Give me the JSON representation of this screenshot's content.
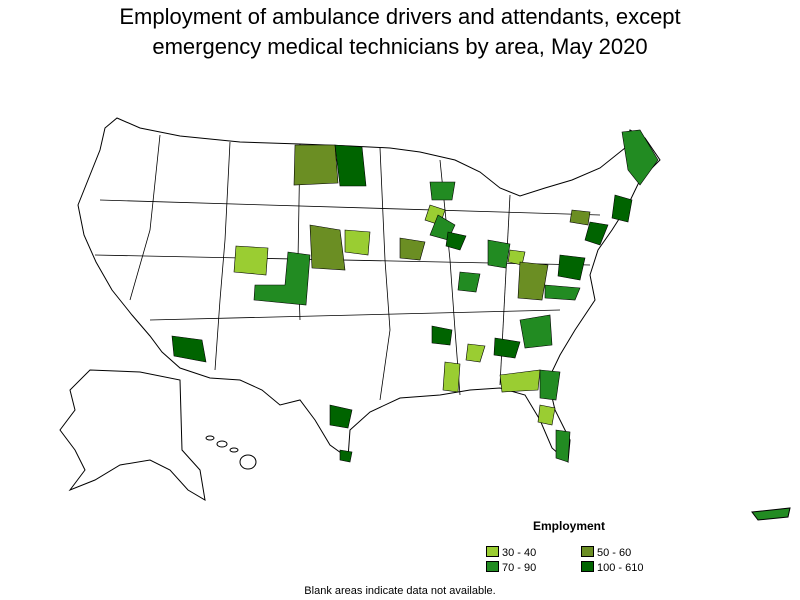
{
  "title_line1": "Employment of ambulance drivers and attendants, except",
  "title_line2": "emergency medical technicians by area, May 2020",
  "legend": {
    "title": "Employment",
    "items": [
      {
        "label": "30 - 40",
        "color": "#9acd32"
      },
      {
        "label": "50 - 60",
        "color": "#6b8e23"
      },
      {
        "label": "70 - 90",
        "color": "#228b22"
      },
      {
        "label": "100 - 610",
        "color": "#006400"
      }
    ]
  },
  "footnote": "Blank areas indicate data not available."
}
